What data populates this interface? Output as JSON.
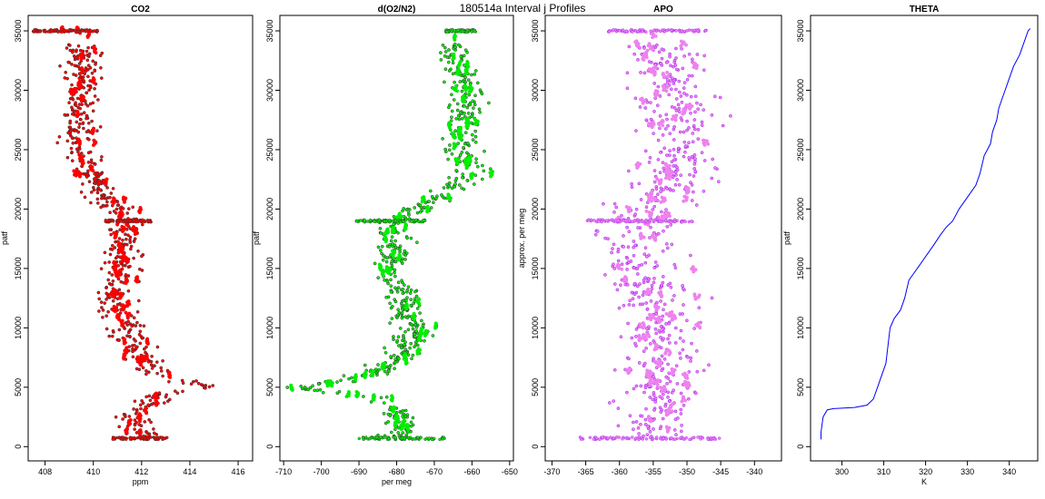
{
  "figure": {
    "title": "180514a   Interval j Profiles"
  },
  "colors": {
    "co2": "#ff0000",
    "o2n2": "#00ee00",
    "apo": "#ee82ee",
    "apo_edge": "#a020f0",
    "theta": "#0000ff",
    "outline": "#000000"
  },
  "chart_data": [
    {
      "id": "co2",
      "type": "scatter",
      "title": "CO2",
      "xlabel": "ppm",
      "ylabel": "patf",
      "xlim": [
        407.3,
        416.6
      ],
      "ylim": [
        -1200,
        36300
      ],
      "xticks": [
        408,
        410,
        412,
        414,
        416
      ],
      "yticks": [
        0,
        5000,
        10000,
        15000,
        20000,
        25000,
        30000,
        35000
      ],
      "profile": [
        [
          0,
          412.0
        ],
        [
          700,
          412.0
        ],
        [
          1500,
          411.9
        ],
        [
          2500,
          411.8
        ],
        [
          3500,
          412.1
        ],
        [
          4200,
          412.5
        ],
        [
          4600,
          413.5
        ],
        [
          5000,
          414.8
        ],
        [
          5500,
          413.5
        ],
        [
          6500,
          412.3
        ],
        [
          8000,
          411.8
        ],
        [
          9500,
          411.5
        ],
        [
          11000,
          411.0
        ],
        [
          13000,
          410.8
        ],
        [
          15000,
          411.1
        ],
        [
          17000,
          411.2
        ],
        [
          19000,
          411.4
        ],
        [
          20000,
          410.9
        ],
        [
          21500,
          410.3
        ],
        [
          23000,
          409.8
        ],
        [
          25000,
          409.5
        ],
        [
          27000,
          409.4
        ],
        [
          29000,
          409.6
        ],
        [
          31000,
          409.7
        ],
        [
          33000,
          409.5
        ],
        [
          34500,
          409.3
        ],
        [
          35200,
          409.0
        ]
      ],
      "spread": 0.55,
      "level_runs": [
        [
          700,
          410.8,
          413.1
        ],
        [
          19000,
          410.5,
          412.4
        ],
        [
          35000,
          407.5,
          410.2
        ]
      ]
    },
    {
      "id": "o2n2",
      "type": "scatter",
      "title": "d(O2/N2)",
      "xlabel": "per meg",
      "ylabel": "patf",
      "xlim": [
        -711,
        -649
      ],
      "ylim": [
        -1200,
        36300
      ],
      "xticks": [
        -710,
        -700,
        -690,
        -680,
        -670,
        -660,
        -650
      ],
      "yticks": [
        0,
        5000,
        10000,
        15000,
        20000,
        25000,
        30000,
        35000
      ],
      "profile": [
        [
          0,
          -680
        ],
        [
          700,
          -680
        ],
        [
          1500,
          -679
        ],
        [
          2500,
          -680
        ],
        [
          3500,
          -681
        ],
        [
          4200,
          -685
        ],
        [
          4700,
          -700
        ],
        [
          5000,
          -706
        ],
        [
          5500,
          -695
        ],
        [
          6500,
          -684
        ],
        [
          8000,
          -678
        ],
        [
          9500,
          -675
        ],
        [
          11000,
          -677
        ],
        [
          13000,
          -678
        ],
        [
          15000,
          -682
        ],
        [
          17000,
          -681
        ],
        [
          18500,
          -680
        ],
        [
          19000,
          -680
        ],
        [
          20000,
          -674
        ],
        [
          21500,
          -666
        ],
        [
          23000,
          -661
        ],
        [
          25000,
          -663
        ],
        [
          27000,
          -662
        ],
        [
          29000,
          -661
        ],
        [
          31000,
          -662
        ],
        [
          33000,
          -665
        ],
        [
          34500,
          -666
        ],
        [
          35200,
          -663
        ]
      ],
      "spread": 3.2,
      "level_runs": [
        [
          700,
          -690,
          -667
        ],
        [
          19000,
          -691,
          -672
        ],
        [
          35000,
          -667,
          -659
        ]
      ]
    },
    {
      "id": "apo",
      "type": "scatter",
      "title": "APO",
      "xlabel": "",
      "ylabel": "approx. per meg",
      "xlim": [
        -371,
        -336
      ],
      "ylim": [
        -1200,
        36300
      ],
      "xticks": [
        -370,
        -365,
        -360,
        -355,
        -350,
        -345,
        -340
      ],
      "yticks": [
        0,
        5000,
        10000,
        15000,
        20000,
        25000,
        30000,
        35000
      ],
      "profile": [
        [
          0,
          -355
        ],
        [
          3000,
          -355
        ],
        [
          6000,
          -354
        ],
        [
          10000,
          -354
        ],
        [
          15000,
          -356
        ],
        [
          18000,
          -358
        ],
        [
          19000,
          -357
        ],
        [
          22000,
          -352
        ],
        [
          26000,
          -351
        ],
        [
          30000,
          -352
        ],
        [
          33000,
          -353
        ],
        [
          35000,
          -357
        ]
      ],
      "spread": 4.2,
      "level_runs": [
        [
          700,
          -366,
          -345
        ],
        [
          19000,
          -365,
          -349
        ],
        [
          35000,
          -362,
          -347
        ]
      ]
    },
    {
      "id": "theta",
      "type": "line",
      "title": "THETA",
      "xlabel": "K",
      "ylabel": "patf",
      "xlim": [
        292.5,
        346.8
      ],
      "ylim": [
        -1200,
        36300
      ],
      "xticks": [
        300,
        310,
        320,
        330,
        340
      ],
      "yticks": [
        0,
        5000,
        10000,
        15000,
        20000,
        25000,
        30000,
        35000
      ],
      "x": [
        295,
        295,
        295.5,
        296.5,
        298,
        303,
        306,
        307.5,
        308.5,
        309.5,
        310.5,
        311,
        311.5,
        312.5,
        314,
        315,
        316,
        317,
        318,
        320,
        322,
        323.5,
        325,
        326.5,
        328,
        330,
        332,
        333,
        334,
        335.5,
        336,
        337,
        337.5,
        338.5,
        339.5,
        341,
        342.5,
        343.5,
        344.5,
        345
      ],
      "y": [
        600,
        1200,
        2500,
        3100,
        3200,
        3300,
        3500,
        4000,
        5000,
        6000,
        7000,
        8500,
        10000,
        10800,
        11500,
        12500,
        14000,
        14500,
        15000,
        16000,
        17000,
        17800,
        18500,
        19000,
        20000,
        21000,
        22000,
        23000,
        24500,
        25500,
        26500,
        27500,
        28500,
        29500,
        30500,
        32000,
        33000,
        34000,
        35000,
        35200
      ]
    }
  ]
}
